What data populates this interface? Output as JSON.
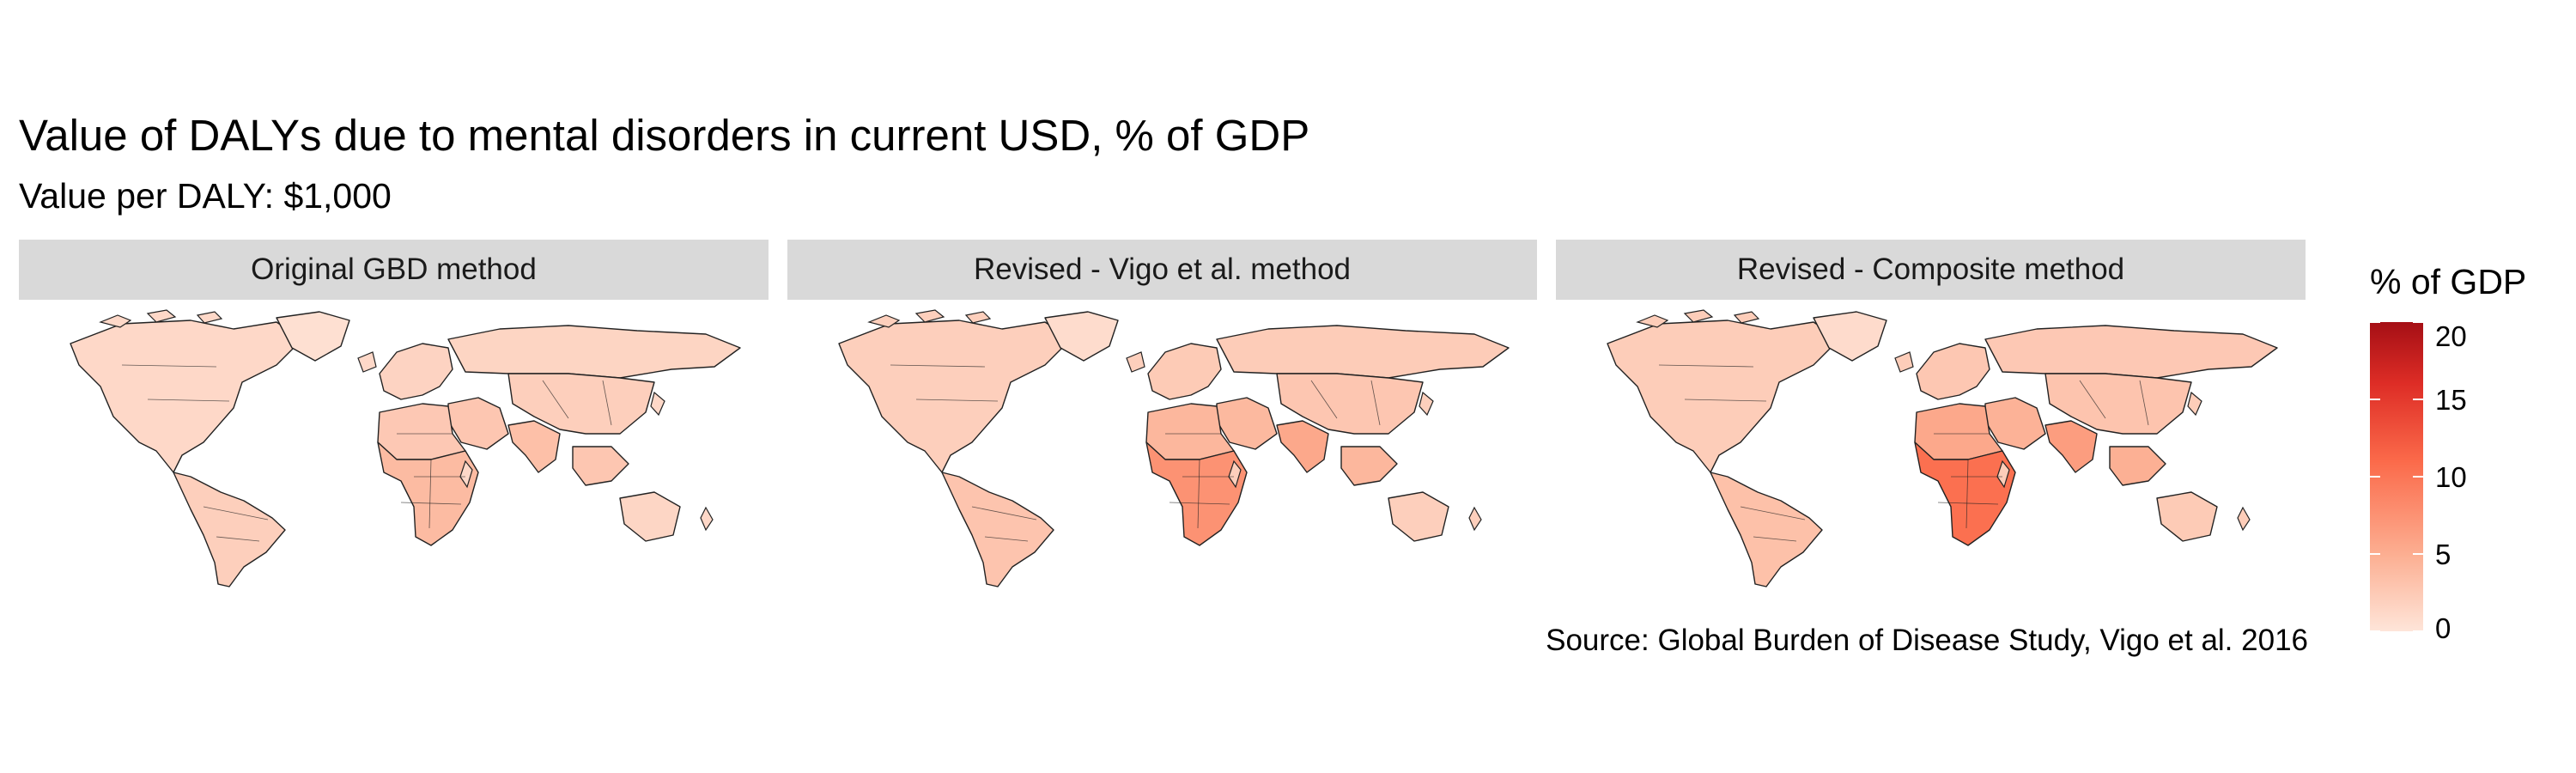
{
  "title": "Value of DALYs due to mental disorders in current USD, % of GDP",
  "subtitle": "Value per DALY: $1,000",
  "source": "Source: Global Burden of Disease Study, Vigo et al. 2016",
  "panels": [
    {
      "label": "Original GBD method",
      "region_values": {
        "na": 1.2,
        "greenland": 0.5,
        "la": 2.0,
        "eu": 1.6,
        "ru": 1.5,
        "me": 2.8,
        "africa_n": 2.6,
        "africa_ss": 3.8,
        "asia_s": 3.4,
        "asia_e": 2.0,
        "asia_se": 2.8,
        "oceania": 1.4
      }
    },
    {
      "label": "Revised - Vigo et al. method",
      "region_values": {
        "na": 2.0,
        "greenland": 0.8,
        "la": 3.0,
        "eu": 2.4,
        "ru": 2.3,
        "me": 4.0,
        "africa_n": 4.2,
        "africa_ss": 7.5,
        "asia_s": 5.5,
        "asia_e": 2.8,
        "asia_se": 4.2,
        "oceania": 2.0
      }
    },
    {
      "label": "Revised - Composite method",
      "region_values": {
        "na": 2.2,
        "greenland": 0.9,
        "la": 3.3,
        "eu": 2.7,
        "ru": 2.6,
        "me": 4.6,
        "africa_n": 5.5,
        "africa_ss": 10.5,
        "asia_s": 6.5,
        "asia_e": 3.0,
        "asia_se": 4.8,
        "oceania": 2.4
      }
    }
  ],
  "legend": {
    "title": "% of GDP",
    "ticks": [
      "0",
      "5",
      "10",
      "15",
      "20"
    ],
    "min": 0,
    "max": 20,
    "colors": {
      "low": "#fee5d9",
      "high": "#a50f15"
    }
  },
  "colors": {
    "strip": "#d9d9d9",
    "border": "#222222",
    "background": "#ffffff"
  }
}
